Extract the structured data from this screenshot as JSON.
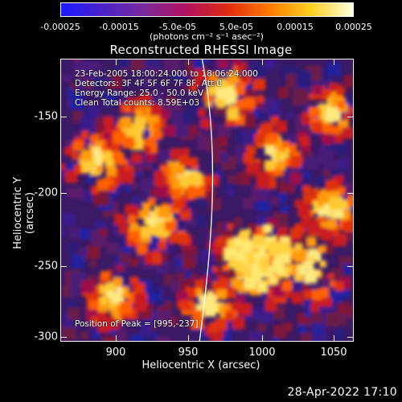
{
  "colorbar": {
    "ticks": [
      "-0.00025",
      "-0.00015",
      "-5.0e-05",
      "5.0e-05",
      "0.00015",
      "0.00025"
    ],
    "units": "(photons cm⁻² s⁻¹ asec⁻²)",
    "stops": [
      "#1a1aff",
      "#4a22c8",
      "#7a2a9a",
      "#b01060",
      "#e02a10",
      "#ff7a00",
      "#ffd020",
      "#ffffe0"
    ]
  },
  "image": {
    "title": "Reconstructed RHESSI Image",
    "annotations": {
      "time": "23-Feb-2005 18:00:24.000 to 18:06:24.000",
      "detectors": "Detectors: 3F 4F 5F 6F 7F 8F, Att 0",
      "energy": "Energy Range: 25.0 - 50.0 keV",
      "clean": "Clean    Total counts: 8.59E+03",
      "peak": "Position of Peak = [995,-237]"
    }
  },
  "axes": {
    "x_label": "Heliocentric X (arcsec)",
    "y_label": "Heliocentric Y (arcsec)",
    "x_ticks": [
      "900",
      "950",
      "1000",
      "1050"
    ],
    "y_ticks": [
      "-150",
      "-200",
      "-250",
      "-300"
    ]
  },
  "footer": {
    "date": "28-Apr-2022 17:10"
  }
}
